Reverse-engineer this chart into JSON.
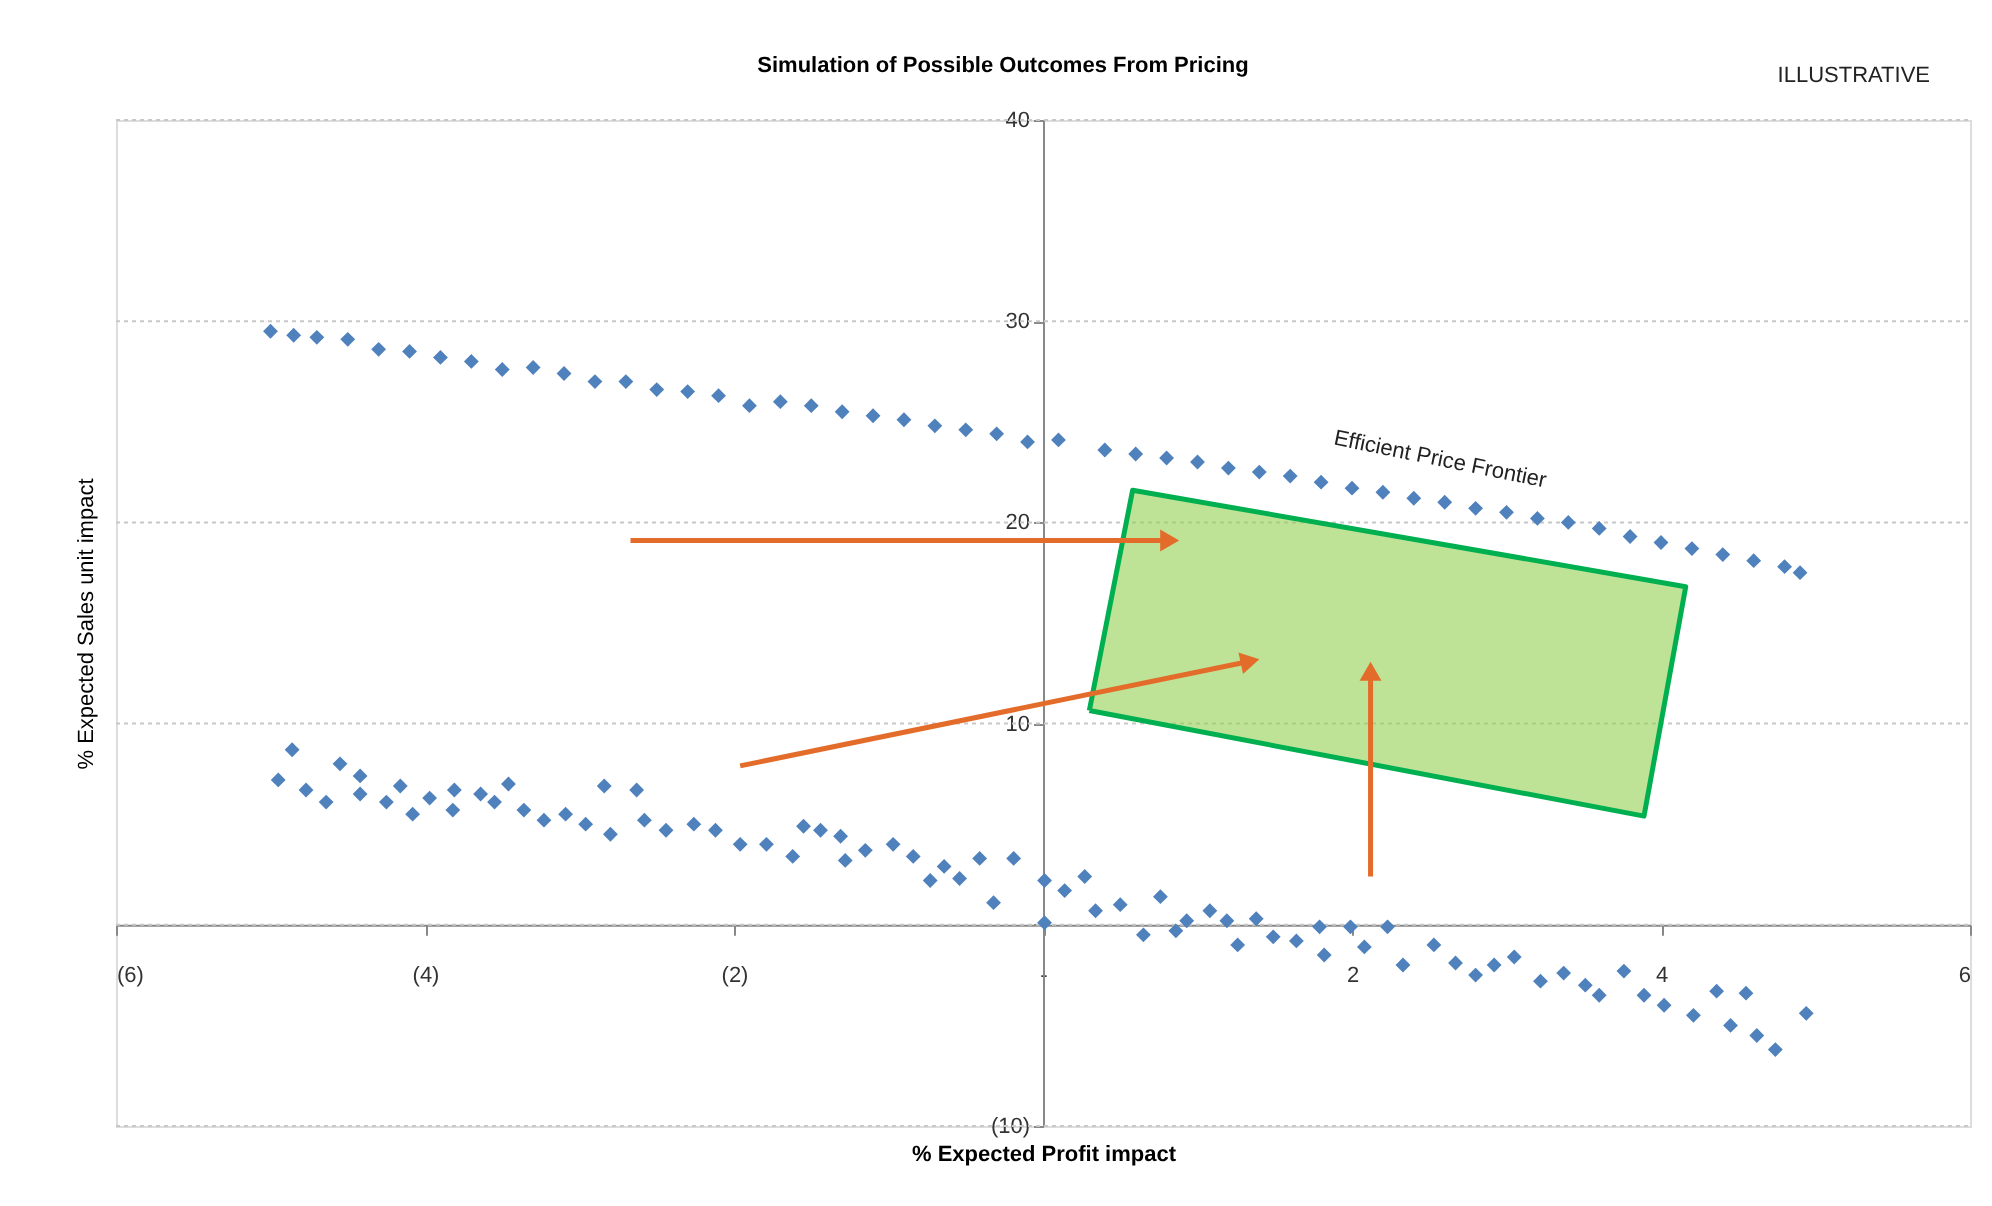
{
  "chart_data": {
    "type": "scatter",
    "title": "Simulation of Possible Outcomes From Pricing",
    "xlabel": "% Expected Profit impact",
    "ylabel": "% Expected Sales unit impact",
    "annotations": [
      "ILLUSTRATIVE",
      "Efficient Price Frontier"
    ],
    "xlim": [
      -6,
      6
    ],
    "ylim": [
      -10,
      40
    ],
    "xticks": [
      {
        "value": -6,
        "label": "(6)"
      },
      {
        "value": -4,
        "label": "(4)"
      },
      {
        "value": -2,
        "label": "(2)"
      },
      {
        "value": 0,
        "label": "-"
      },
      2,
      4,
      6
    ],
    "yticks": [
      {
        "value": -10,
        "label": "(10)"
      },
      {
        "value": 0,
        "label": null
      },
      10,
      20,
      30,
      40
    ],
    "grid": "y",
    "marker": "diamond",
    "series": [
      {
        "color": "#4f81bd",
        "x": [
          -5,
          -4.85,
          -4.7,
          -4.5,
          -4.3,
          -4.1,
          -3.9,
          -3.7,
          -3.5,
          -3.3,
          -3.1,
          -2.9,
          -2.7,
          -2.5,
          -2.3,
          -2.1,
          -1.9,
          -1.7,
          -1.5,
          -1.3,
          -1.1,
          -0.9,
          -0.7,
          -0.5,
          -0.3,
          -0.1,
          0.1,
          0.4,
          0.6,
          0.8,
          1.0,
          1.2,
          1.4,
          1.6,
          1.8,
          2.0,
          2.2,
          2.4,
          2.6,
          2.8,
          3.0,
          3.2,
          3.4,
          3.6,
          3.8,
          4.0,
          4.2,
          4.4,
          4.6,
          4.8,
          4.9
        ],
        "values": [
          29.5,
          29.3,
          29.2,
          29.1,
          28.6,
          28.5,
          28.2,
          28.0,
          27.6,
          27.7,
          27.4,
          27.0,
          27.0,
          26.6,
          26.5,
          26.3,
          25.8,
          26.0,
          25.8,
          25.5,
          25.3,
          25.1,
          24.8,
          24.6,
          24.4,
          24.0,
          24.1,
          23.6,
          23.4,
          23.2,
          23.0,
          22.7,
          22.5,
          22.3,
          22.0,
          21.7,
          21.5,
          21.2,
          21.0,
          20.7,
          20.5,
          20.2,
          20.0,
          19.7,
          19.3,
          19.0,
          18.7,
          18.4,
          18.1,
          17.8,
          17.5
        ]
      },
      {
        "color": "#4f81bd",
        "x": [
          -4.95,
          -4.86,
          -4.77,
          -4.64,
          -4.55,
          -4.42,
          -4.42,
          -4.25,
          -4.16,
          -4.08,
          -3.97,
          -3.81,
          -3.82,
          -3.64,
          -3.55,
          -3.46,
          -3.36,
          -3.23,
          -3.09,
          -2.96,
          -2.84,
          -2.8,
          -2.63,
          -2.58,
          -2.44,
          -2.26,
          -2.12,
          -1.96,
          -1.79,
          -1.62,
          -1.55,
          -1.44,
          -1.31,
          -1.28,
          -1.15,
          -0.97,
          -0.84,
          -0.73,
          -0.64,
          -0.54,
          -0.41,
          -0.32,
          -0.19,
          0.01,
          0.01,
          0.14,
          0.27,
          0.34,
          0.5,
          0.65,
          0.76,
          0.86,
          0.93,
          1.08,
          1.19,
          1.26,
          1.38,
          1.49,
          1.64,
          1.79,
          1.82,
          1.99,
          2.08,
          2.23,
          2.33,
          2.53,
          2.67,
          2.8,
          2.92,
          3.05,
          3.22,
          3.37,
          3.51,
          3.6,
          3.76,
          3.89,
          4.02,
          4.21,
          4.36,
          4.45,
          4.55,
          4.62,
          4.74,
          4.94
        ],
        "values": [
          7.2,
          8.7,
          6.7,
          6.1,
          8.0,
          7.4,
          6.5,
          6.1,
          6.9,
          5.5,
          6.3,
          6.7,
          5.7,
          6.5,
          6.1,
          7.0,
          5.7,
          5.2,
          5.5,
          5.0,
          6.9,
          4.5,
          6.7,
          5.2,
          4.7,
          5.0,
          4.7,
          4.0,
          4.0,
          3.4,
          4.9,
          4.7,
          4.4,
          3.2,
          3.7,
          4.0,
          3.4,
          2.2,
          2.9,
          2.3,
          3.3,
          1.1,
          3.3,
          2.2,
          0.1,
          1.7,
          2.4,
          0.7,
          1.0,
          -0.5,
          1.4,
          -0.3,
          0.2,
          0.7,
          0.2,
          -1.0,
          0.3,
          -0.6,
          -0.8,
          -0.1,
          -1.5,
          -0.1,
          -1.1,
          -0.1,
          -2.0,
          -1.0,
          -1.9,
          -2.5,
          -2.0,
          -1.6,
          -2.8,
          -2.4,
          -3.0,
          -3.5,
          -2.3,
          -3.5,
          -4.0,
          -4.5,
          -3.3,
          -5.0,
          -3.4,
          -5.5,
          -6.2,
          -4.4
        ]
      }
    ]
  }
}
